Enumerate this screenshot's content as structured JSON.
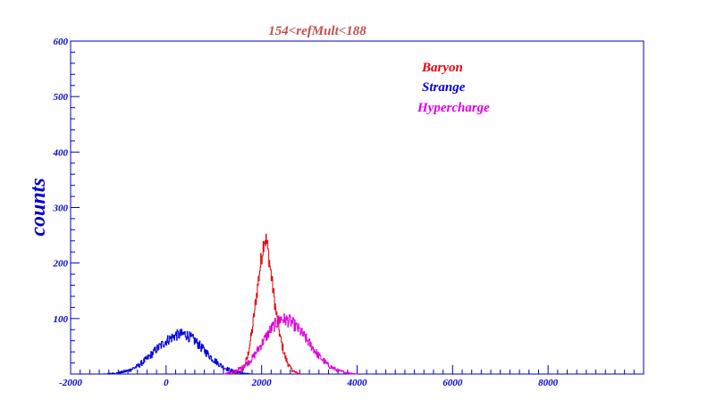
{
  "chart_data": {
    "type": "line",
    "title": "154<refMult<188",
    "xlabel": "",
    "ylabel": "counts",
    "xlim": [
      -2000,
      10000
    ],
    "ylim": [
      0,
      600
    ],
    "x_ticks": [
      -2000,
      0,
      2000,
      4000,
      6000,
      8000
    ],
    "x_tick_labels": [
      "-2000",
      "0",
      "2000",
      "4000",
      "6000",
      "8000"
    ],
    "y_ticks": [
      100,
      200,
      300,
      400,
      500,
      600
    ],
    "y_tick_labels": [
      "100",
      "200",
      "300",
      "400",
      "500",
      "600"
    ],
    "grid": false,
    "legend_position": "top-right",
    "colors": {
      "axis": "#0000cc",
      "title": "#c0504d",
      "Baryon": "#e8000b",
      "Strange": "#0000dd",
      "Hypercharge": "#dd00dd"
    },
    "series": [
      {
        "name": "Baryon",
        "x": [
          1400,
          1500,
          1600,
          1700,
          1800,
          1900,
          2000,
          2050,
          2100,
          2150,
          2200,
          2300,
          2400,
          2500,
          2600,
          2700,
          2800
        ],
        "values": [
          0,
          2,
          8,
          30,
          80,
          150,
          215,
          245,
          240,
          210,
          175,
          110,
          60,
          28,
          10,
          3,
          0
        ]
      },
      {
        "name": "Strange",
        "x": [
          -1300,
          -1000,
          -800,
          -600,
          -400,
          -200,
          0,
          200,
          400,
          600,
          800,
          1000,
          1200,
          1400,
          1600,
          1800
        ],
        "values": [
          0,
          2,
          6,
          14,
          28,
          45,
          60,
          70,
          72,
          60,
          42,
          25,
          12,
          5,
          1,
          0
        ]
      },
      {
        "name": "Hypercharge",
        "x": [
          1200,
          1400,
          1600,
          1800,
          2000,
          2200,
          2400,
          2600,
          2800,
          3000,
          3200,
          3400,
          3600,
          3800,
          4000
        ],
        "values": [
          0,
          4,
          12,
          28,
          55,
          82,
          100,
          95,
          78,
          55,
          32,
          15,
          6,
          2,
          0
        ]
      }
    ]
  }
}
